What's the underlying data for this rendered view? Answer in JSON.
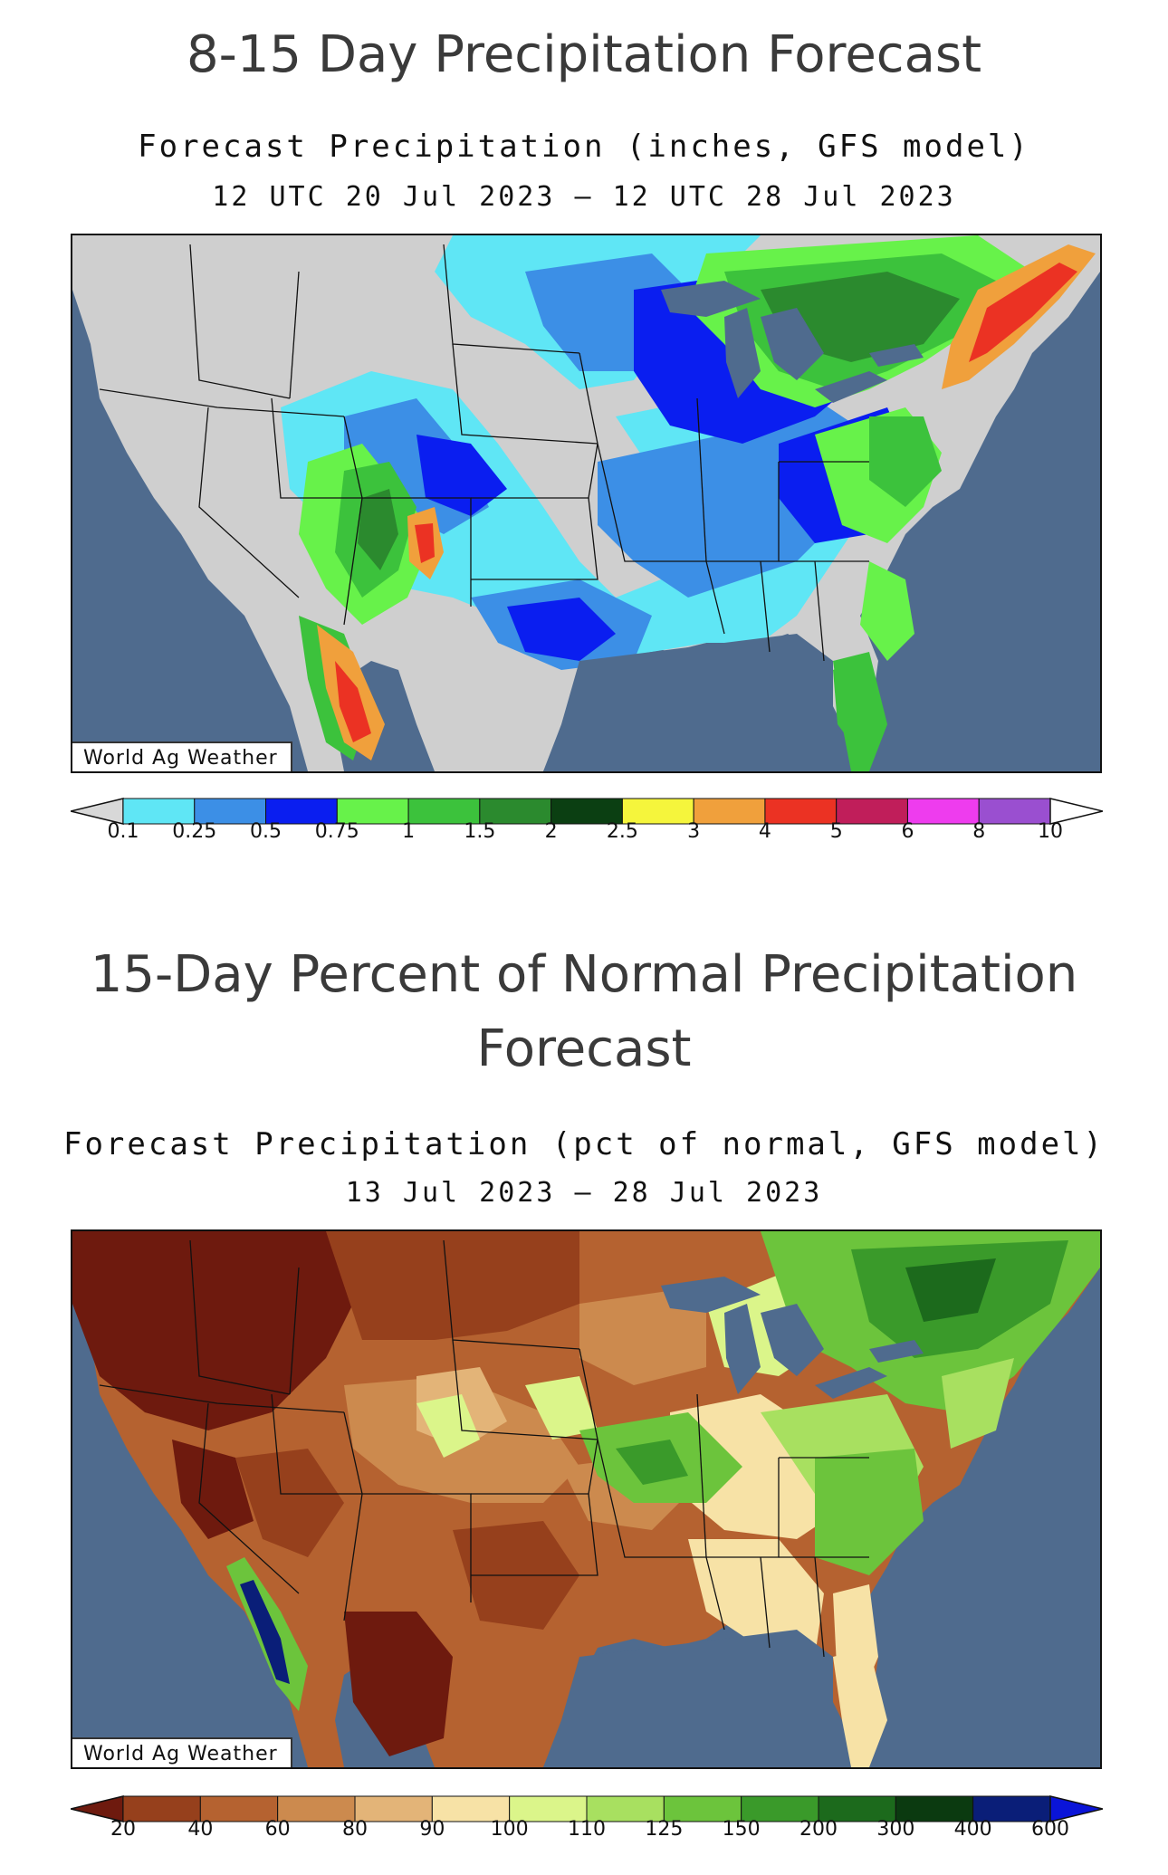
{
  "panel1": {
    "heading": "8-15 Day Precipitation Forecast",
    "subtitle_line1": "Forecast Precipitation (inches, GFS model)",
    "subtitle_line2": "12 UTC 20 Jul 2023 – 12 UTC 28 Jul 2023",
    "credit": "World Ag Weather",
    "legend": {
      "ticks": [
        "0.1",
        "0.25",
        "0.5",
        "0.75",
        "1",
        "1.5",
        "2",
        "2.5",
        "3",
        "4",
        "5",
        "6",
        "8",
        "10"
      ],
      "colors": [
        "#d8d8d8",
        "#5fe6f5",
        "#3c8fe6",
        "#0a1ef0",
        "#67f24a",
        "#3cc23c",
        "#2b8a2e",
        "#0b3f12",
        "#f5f53c",
        "#f0a03c",
        "#eb3223",
        "#c01e5a",
        "#ee3cee",
        "#9a4fd0",
        "#ffffff"
      ]
    }
  },
  "panel2": {
    "heading": "15-Day Percent of Normal Precipitation Forecast",
    "subtitle_line1": "Forecast Precipitation (pct of normal, GFS model)",
    "subtitle_line2": "13 Jul 2023 – 28 Jul 2023",
    "credit": "World Ag Weather",
    "legend": {
      "ticks": [
        "20",
        "40",
        "60",
        "80",
        "90",
        "100",
        "110",
        "125",
        "150",
        "200",
        "300",
        "400",
        "600"
      ],
      "colors": [
        "#6e1a0e",
        "#96401c",
        "#b56230",
        "#cc8a4e",
        "#e3b478",
        "#f7e2a6",
        "#dbf58a",
        "#a8e060",
        "#6cc43c",
        "#3a9a2a",
        "#1c6a1c",
        "#0b3a10",
        "#0a1e78",
        "#0a14d8"
      ]
    }
  }
}
